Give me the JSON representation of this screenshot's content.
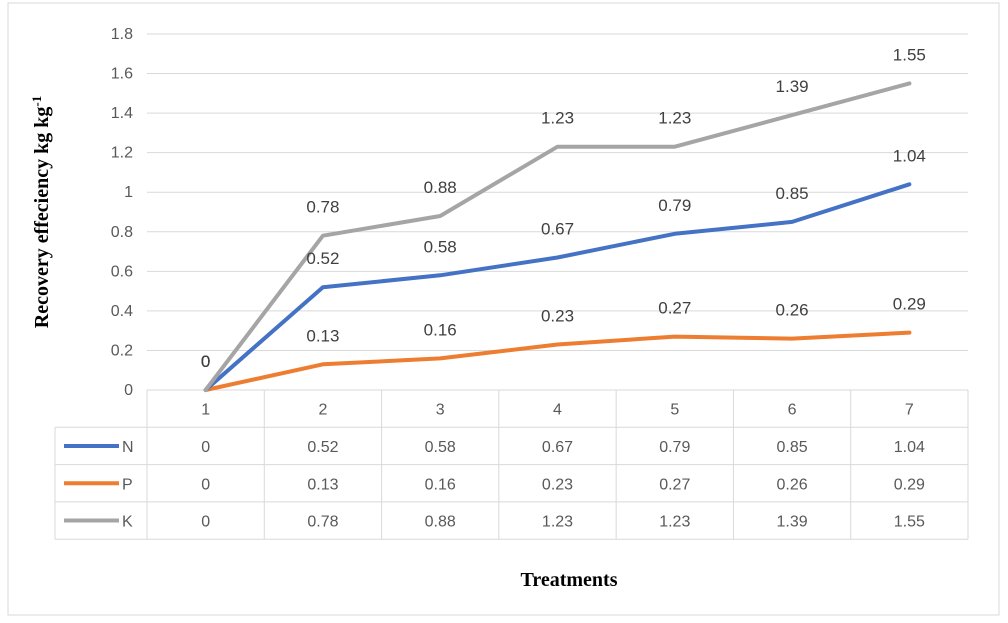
{
  "chart_data": {
    "type": "line",
    "title": "",
    "xlabel": "Treatments",
    "ylabel": "Recovery effeciency kg kg",
    "ylabel_superscript": "-1",
    "categories": [
      "1",
      "2",
      "3",
      "4",
      "5",
      "6",
      "7"
    ],
    "ylim": [
      0,
      1.8
    ],
    "yticks": [
      "0",
      "0.2",
      "0.4",
      "0.6",
      "0.8",
      "1",
      "1.2",
      "1.4",
      "1.6",
      "1.8"
    ],
    "grid": true,
    "legend": "data-table",
    "series": [
      {
        "name": "N",
        "color": "#4472C4",
        "values": [
          0,
          0.52,
          0.58,
          0.67,
          0.79,
          0.85,
          1.04
        ],
        "labels": [
          "0",
          "0.52",
          "0.58",
          "0.67",
          "0.79",
          "0.85",
          "1.04"
        ]
      },
      {
        "name": "P",
        "color": "#ED7D31",
        "values": [
          0,
          0.13,
          0.16,
          0.23,
          0.27,
          0.26,
          0.29
        ],
        "labels": [
          "0",
          "0.13",
          "0.16",
          "0.23",
          "0.27",
          "0.26",
          "0.29"
        ]
      },
      {
        "name": "K",
        "color": "#A5A5A5",
        "values": [
          0,
          0.78,
          0.88,
          1.23,
          1.23,
          1.39,
          1.55
        ],
        "labels": [
          "0",
          "0.78",
          "0.88",
          "1.23",
          "1.23",
          "1.39",
          "1.55"
        ]
      }
    ]
  }
}
